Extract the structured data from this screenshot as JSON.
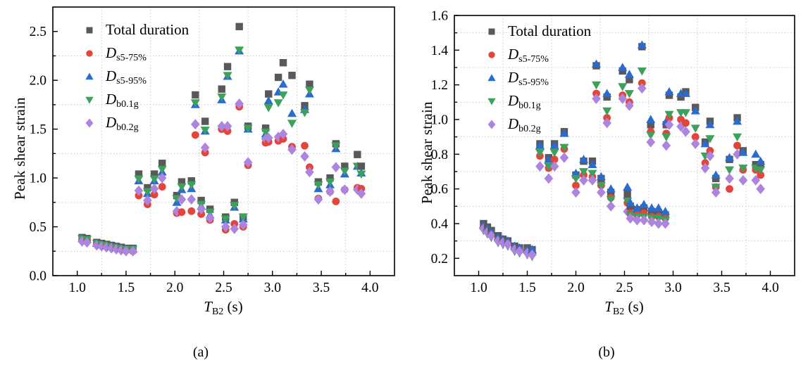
{
  "style": {
    "background": "#ffffff",
    "frame_color": "#000000",
    "grid_color": "#c9c9c9",
    "text_color": "#000000",
    "series_colors": {
      "total": "#595959",
      "ds5_75": "#e4443a",
      "ds5_95": "#2a6bd2",
      "db01g": "#3da05b",
      "db02g": "#ae85de"
    }
  },
  "chart_data": [
    {
      "type": "scatter",
      "caption": "(a)",
      "xlabel": "T_B2 (s)",
      "xlabel_parts": {
        "base": "T",
        "sub": "B2",
        "rest": " (s)"
      },
      "ylabel": "Peak shear strain",
      "xlim": [
        0.75,
        4.25
      ],
      "ylim": [
        0,
        2.75
      ],
      "x_major_ticks": {
        "values": [
          1.0,
          1.5,
          2.0,
          2.5,
          3.0,
          3.5,
          4.0
        ],
        "labels": [
          "1.0",
          "1.5",
          "2.0",
          "2.5",
          "3.0",
          "3.5",
          "4.0"
        ]
      },
      "x_minor_ticks": [
        1.25,
        1.75,
        2.25,
        2.75,
        3.25,
        3.75
      ],
      "y_major_ticks": {
        "values": [
          0,
          0.5,
          1.0,
          1.5,
          2.0,
          2.5
        ],
        "labels": [
          "0.0",
          "0.5",
          "1.0",
          "1.5",
          "2.0",
          "2.5"
        ]
      },
      "y_minor_ticks": [
        0.25,
        0.75,
        1.25,
        1.75,
        2.25
      ],
      "grid": "dotted-minor-only",
      "legend_position": "upper-left-inside",
      "series": [
        {
          "key": "total",
          "name": "Total duration",
          "marker": "square",
          "color": "#595959",
          "legend": {
            "text": "Total duration"
          }
        },
        {
          "key": "ds5_75",
          "name": "D s5-75%",
          "marker": "circle",
          "color": "#e4443a",
          "legend": {
            "d": "D",
            "sub": "s5-75%"
          }
        },
        {
          "key": "ds5_95",
          "name": "D s5-95%",
          "marker": "triangle-up",
          "color": "#2a6bd2",
          "legend": {
            "d": "D",
            "sub": "s5-95%"
          }
        },
        {
          "key": "db01g",
          "name": "D b0.1g",
          "marker": "triangle-down",
          "color": "#3da05b",
          "legend": {
            "d": "D",
            "sub": "b0.1g"
          }
        },
        {
          "key": "db02g",
          "name": "D b0.2g",
          "marker": "diamond",
          "color": "#ae85de",
          "legend": {
            "d": "D",
            "sub": "b0.2g"
          }
        }
      ],
      "series_value_order": [
        "total",
        "ds5_75",
        "ds5_95",
        "db01g",
        "db02g"
      ],
      "columns": [
        {
          "x": 1.05,
          "v": [
            0.39,
            0.37,
            0.38,
            0.38,
            0.35
          ]
        },
        {
          "x": 1.1,
          "v": [
            0.38,
            0.36,
            0.37,
            0.37,
            0.34
          ]
        },
        {
          "x": 1.2,
          "v": [
            0.34,
            0.32,
            0.33,
            0.33,
            0.31
          ]
        },
        {
          "x": 1.25,
          "v": [
            0.33,
            0.31,
            0.32,
            0.32,
            0.3
          ]
        },
        {
          "x": 1.3,
          "v": [
            0.32,
            0.3,
            0.31,
            0.31,
            0.29
          ]
        },
        {
          "x": 1.35,
          "v": [
            0.31,
            0.29,
            0.3,
            0.3,
            0.28
          ]
        },
        {
          "x": 1.4,
          "v": [
            0.3,
            0.28,
            0.29,
            0.29,
            0.27
          ]
        },
        {
          "x": 1.45,
          "v": [
            0.29,
            0.27,
            0.28,
            0.28,
            0.26
          ]
        },
        {
          "x": 1.5,
          "v": [
            0.28,
            0.26,
            0.27,
            0.27,
            0.25
          ]
        },
        {
          "x": 1.57,
          "v": [
            0.28,
            0.25,
            0.27,
            0.27,
            0.25
          ]
        },
        {
          "x": 1.63,
          "v": [
            1.04,
            0.82,
            0.97,
            0.99,
            0.87
          ]
        },
        {
          "x": 1.72,
          "v": [
            0.9,
            0.73,
            0.84,
            0.86,
            0.77
          ]
        },
        {
          "x": 1.79,
          "v": [
            1.04,
            0.83,
            0.97,
            0.99,
            0.89
          ]
        },
        {
          "x": 1.87,
          "v": [
            1.15,
            0.91,
            1.06,
            1.09,
            1.0
          ]
        },
        {
          "x": 2.02,
          "v": [
            0.82,
            0.64,
            0.75,
            0.79,
            0.66
          ]
        },
        {
          "x": 2.07,
          "v": [
            0.96,
            0.65,
            0.88,
            0.91,
            0.78
          ]
        },
        {
          "x": 2.17,
          "v": [
            0.97,
            0.66,
            0.89,
            0.93,
            0.78
          ]
        },
        {
          "x": 2.21,
          "v": [
            1.85,
            1.44,
            1.75,
            1.77,
            1.55
          ]
        },
        {
          "x": 2.27,
          "v": [
            0.77,
            0.63,
            0.71,
            0.73,
            0.68
          ]
        },
        {
          "x": 2.31,
          "v": [
            1.58,
            1.26,
            1.48,
            1.49,
            1.31
          ]
        },
        {
          "x": 2.36,
          "v": [
            0.68,
            0.57,
            0.62,
            0.65,
            0.59
          ]
        },
        {
          "x": 2.48,
          "v": [
            1.91,
            1.5,
            1.8,
            1.83,
            1.53
          ]
        },
        {
          "x": 2.52,
          "v": [
            0.6,
            0.47,
            0.57,
            0.58,
            0.5
          ]
        },
        {
          "x": 2.54,
          "v": [
            2.14,
            1.48,
            2.04,
            2.05,
            1.53
          ]
        },
        {
          "x": 2.61,
          "v": [
            0.75,
            0.53,
            0.7,
            0.72,
            0.48
          ]
        },
        {
          "x": 2.66,
          "v": [
            2.55,
            1.73,
            2.3,
            2.31,
            1.76
          ]
        },
        {
          "x": 2.7,
          "v": [
            0.6,
            0.5,
            0.58,
            0.6,
            0.52
          ]
        },
        {
          "x": 2.75,
          "v": [
            1.53,
            1.13,
            1.5,
            1.51,
            1.16
          ]
        },
        {
          "x": 2.93,
          "v": [
            1.51,
            1.36,
            1.45,
            1.47,
            1.4
          ]
        },
        {
          "x": 2.96,
          "v": [
            1.86,
            1.37,
            1.79,
            1.72,
            1.41
          ]
        },
        {
          "x": 3.06,
          "v": [
            2.03,
            1.38,
            1.88,
            1.77,
            1.42
          ]
        },
        {
          "x": 3.11,
          "v": [
            2.18,
            1.4,
            1.96,
            1.85,
            1.45
          ]
        },
        {
          "x": 3.2,
          "v": [
            2.05,
            1.32,
            1.66,
            1.56,
            1.29
          ]
        },
        {
          "x": 3.33,
          "v": [
            1.74,
            1.33,
            1.7,
            1.67,
            1.22
          ]
        },
        {
          "x": 3.38,
          "v": [
            1.96,
            1.11,
            1.86,
            1.9,
            1.06
          ]
        },
        {
          "x": 3.47,
          "v": [
            0.96,
            0.79,
            0.89,
            0.93,
            0.78
          ]
        },
        {
          "x": 3.59,
          "v": [
            1.0,
            0.86,
            0.93,
            0.96,
            0.86
          ]
        },
        {
          "x": 3.65,
          "v": [
            1.35,
            0.76,
            1.3,
            1.33,
            1.11
          ]
        },
        {
          "x": 3.74,
          "v": [
            1.12,
            0.88,
            1.04,
            1.07,
            0.88
          ]
        },
        {
          "x": 3.87,
          "v": [
            1.24,
            0.9,
            1.12,
            1.12,
            0.88
          ]
        },
        {
          "x": 3.91,
          "v": [
            1.12,
            0.89,
            1.05,
            1.04,
            0.84
          ]
        }
      ]
    },
    {
      "type": "scatter",
      "caption": "(b)",
      "xlabel": "T_B2 (s)",
      "xlabel_parts": {
        "base": "T",
        "sub": "B2",
        "rest": " (s)"
      },
      "ylabel": "Peak shear strain",
      "xlim": [
        0.75,
        4.25
      ],
      "ylim": [
        0.1,
        1.6
      ],
      "x_major_ticks": {
        "values": [
          1.0,
          1.5,
          2.0,
          2.5,
          3.0,
          3.5,
          4.0
        ],
        "labels": [
          "1.0",
          "1.5",
          "2.0",
          "2.5",
          "3.0",
          "3.5",
          "4.0"
        ]
      },
      "x_minor_ticks": [
        1.25,
        1.75,
        2.25,
        2.75,
        3.25,
        3.75
      ],
      "y_major_ticks": {
        "values": [
          0.2,
          0.4,
          0.6,
          0.8,
          1.0,
          1.2,
          1.4,
          1.6
        ],
        "labels": [
          "0.2",
          "0.4",
          "0.6",
          "0.8",
          "1.0",
          "1.2",
          "1.4",
          "1.6"
        ]
      },
      "y_minor_ticks": [
        0.3,
        0.5,
        0.7,
        0.9,
        1.1,
        1.3,
        1.5
      ],
      "grid": "dotted-minor-only",
      "legend_position": "upper-left-inside",
      "series": [
        {
          "key": "total",
          "name": "Total duration",
          "marker": "square",
          "color": "#595959",
          "legend": {
            "text": "Total duration"
          }
        },
        {
          "key": "ds5_75",
          "name": "D s5-75%",
          "marker": "circle",
          "color": "#e4443a",
          "legend": {
            "d": "D",
            "sub": "s5-75%"
          }
        },
        {
          "key": "ds5_95",
          "name": "D s5-95%",
          "marker": "triangle-up",
          "color": "#2a6bd2",
          "legend": {
            "d": "D",
            "sub": "s5-95%"
          }
        },
        {
          "key": "db01g",
          "name": "D b0.1g",
          "marker": "triangle-down",
          "color": "#3da05b",
          "legend": {
            "d": "D",
            "sub": "b0.1g"
          }
        },
        {
          "key": "db02g",
          "name": "D b0.2g",
          "marker": "diamond",
          "color": "#ae85de",
          "legend": {
            "d": "D",
            "sub": "b0.2g"
          }
        }
      ],
      "series_value_order": [
        "total",
        "ds5_75",
        "ds5_95",
        "db01g",
        "db02g"
      ],
      "columns": [
        {
          "x": 1.05,
          "v": [
            0.4,
            0.38,
            0.39,
            0.36,
            0.37
          ]
        },
        {
          "x": 1.09,
          "v": [
            0.38,
            0.36,
            0.37,
            0.34,
            0.35
          ]
        },
        {
          "x": 1.13,
          "v": [
            0.36,
            0.34,
            0.35,
            0.32,
            0.33
          ]
        },
        {
          "x": 1.2,
          "v": [
            0.33,
            0.31,
            0.32,
            0.29,
            0.3
          ]
        },
        {
          "x": 1.25,
          "v": [
            0.31,
            0.3,
            0.31,
            0.28,
            0.29
          ]
        },
        {
          "x": 1.3,
          "v": [
            0.3,
            0.29,
            0.3,
            0.27,
            0.28
          ]
        },
        {
          "x": 1.37,
          "v": [
            0.27,
            0.26,
            0.27,
            0.24,
            0.25
          ]
        },
        {
          "x": 1.42,
          "v": [
            0.26,
            0.25,
            0.26,
            0.23,
            0.24
          ]
        },
        {
          "x": 1.5,
          "v": [
            0.26,
            0.24,
            0.25,
            0.22,
            0.23
          ]
        },
        {
          "x": 1.55,
          "v": [
            0.25,
            0.23,
            0.25,
            0.21,
            0.22
          ]
        },
        {
          "x": 1.63,
          "v": [
            0.86,
            0.79,
            0.85,
            0.81,
            0.73
          ]
        },
        {
          "x": 1.72,
          "v": [
            0.78,
            0.72,
            0.77,
            0.73,
            0.66
          ]
        },
        {
          "x": 1.78,
          "v": [
            0.86,
            0.77,
            0.85,
            0.81,
            0.73
          ]
        },
        {
          "x": 1.88,
          "v": [
            0.93,
            0.83,
            0.92,
            0.84,
            0.78
          ]
        },
        {
          "x": 2.0,
          "v": [
            0.68,
            0.62,
            0.69,
            0.66,
            0.58
          ]
        },
        {
          "x": 2.08,
          "v": [
            0.76,
            0.68,
            0.77,
            0.7,
            0.65
          ]
        },
        {
          "x": 2.17,
          "v": [
            0.76,
            0.67,
            0.74,
            0.69,
            0.65
          ]
        },
        {
          "x": 2.21,
          "v": [
            1.31,
            1.15,
            1.32,
            1.2,
            1.12
          ]
        },
        {
          "x": 2.26,
          "v": [
            0.66,
            0.62,
            0.67,
            0.62,
            0.58
          ]
        },
        {
          "x": 2.32,
          "v": [
            1.13,
            1.01,
            1.15,
            1.05,
            0.98
          ]
        },
        {
          "x": 2.36,
          "v": [
            0.58,
            0.55,
            0.6,
            0.54,
            0.5
          ]
        },
        {
          "x": 2.48,
          "v": [
            1.28,
            1.14,
            1.3,
            1.19,
            1.12
          ]
        },
        {
          "x": 2.53,
          "v": [
            0.57,
            0.52,
            0.61,
            0.53,
            0.47
          ]
        },
        {
          "x": 2.55,
          "v": [
            1.23,
            1.1,
            1.26,
            1.15,
            1.08
          ]
        },
        {
          "x": 2.56,
          "v": [
            0.5,
            0.46,
            0.52,
            0.45,
            0.43
          ]
        },
        {
          "x": 2.63,
          "v": [
            0.48,
            0.45,
            0.49,
            0.44,
            0.42
          ]
        },
        {
          "x": 2.68,
          "v": [
            1.42,
            1.21,
            1.43,
            1.28,
            1.18
          ]
        },
        {
          "x": 2.7,
          "v": [
            0.49,
            0.46,
            0.51,
            0.44,
            0.42
          ]
        },
        {
          "x": 2.77,
          "v": [
            0.97,
            0.93,
            1.0,
            0.91,
            0.87
          ]
        },
        {
          "x": 2.78,
          "v": [
            0.47,
            0.44,
            0.49,
            0.43,
            0.41
          ]
        },
        {
          "x": 2.85,
          "v": [
            0.46,
            0.44,
            0.49,
            0.43,
            0.4
          ]
        },
        {
          "x": 2.92,
          "v": [
            0.45,
            0.43,
            0.47,
            0.42,
            0.4
          ]
        },
        {
          "x": 2.93,
          "v": [
            0.97,
            0.92,
            0.99,
            0.9,
            0.85
          ]
        },
        {
          "x": 2.96,
          "v": [
            1.14,
            1.01,
            1.16,
            1.03,
            0.97
          ]
        },
        {
          "x": 3.08,
          "v": [
            1.13,
            1.0,
            1.15,
            1.04,
            0.96
          ]
        },
        {
          "x": 3.13,
          "v": [
            1.16,
            0.98,
            1.15,
            1.04,
            0.93
          ]
        },
        {
          "x": 3.23,
          "v": [
            1.07,
            0.9,
            1.05,
            0.95,
            0.86
          ]
        },
        {
          "x": 3.33,
          "v": [
            0.87,
            0.75,
            0.86,
            0.79,
            0.72
          ]
        },
        {
          "x": 3.38,
          "v": [
            0.99,
            0.82,
            0.97,
            0.89,
            0.79
          ]
        },
        {
          "x": 3.44,
          "v": [
            0.66,
            0.61,
            0.68,
            0.61,
            0.58
          ]
        },
        {
          "x": 3.58,
          "v": [
            0.77,
            0.6,
            0.78,
            0.71,
            0.66
          ]
        },
        {
          "x": 3.66,
          "v": [
            1.01,
            0.85,
            0.99,
            0.9,
            0.8
          ]
        },
        {
          "x": 3.72,
          "v": [
            0.82,
            0.71,
            0.81,
            0.72,
            0.65
          ]
        },
        {
          "x": 3.85,
          "v": [
            0.74,
            0.71,
            0.8,
            0.72,
            0.65
          ]
        },
        {
          "x": 3.9,
          "v": [
            0.74,
            0.68,
            0.76,
            0.71,
            0.6
          ]
        }
      ]
    }
  ]
}
